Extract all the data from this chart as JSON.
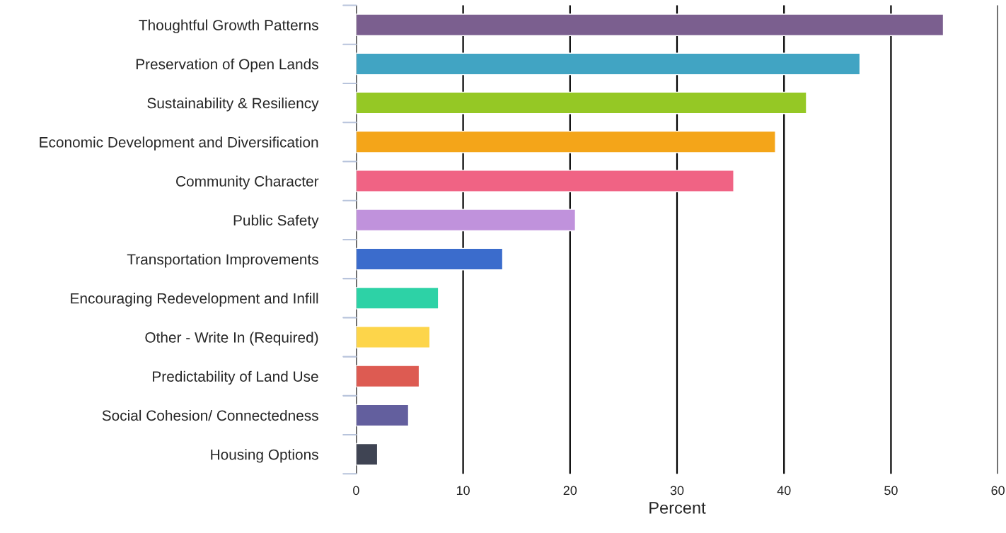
{
  "chart_data": {
    "type": "bar",
    "orientation": "horizontal",
    "xlabel": "Percent",
    "categories": [
      "Thoughtful Growth Patterns",
      "Preservation of Open Lands",
      "Sustainability & Resiliency",
      "Economic Development and Diversification",
      "Community Character",
      "Public Safety",
      "Transportation Improvements",
      "Encouraging Redevelopment and Infill",
      "Other - Write In (Required)",
      "Predictability of Land Use",
      "Social Cohesion/ Connectedness",
      "Housing Options"
    ],
    "values": [
      54.9,
      47.1,
      42.1,
      39.2,
      35.3,
      20.5,
      13.7,
      7.7,
      6.9,
      5.9,
      4.9,
      2.0
    ],
    "colors": [
      "#7b5f8f",
      "#41a4c3",
      "#95c825",
      "#f4a519",
      "#f06384",
      "#c092dc",
      "#3b6ccc",
      "#2dd2a6",
      "#fdd54a",
      "#dd5b52",
      "#635f9e",
      "#3f4453"
    ],
    "xlim": [
      0,
      60
    ],
    "xticks": [
      0,
      10,
      20,
      30,
      40,
      50,
      60
    ],
    "grid": "x"
  }
}
